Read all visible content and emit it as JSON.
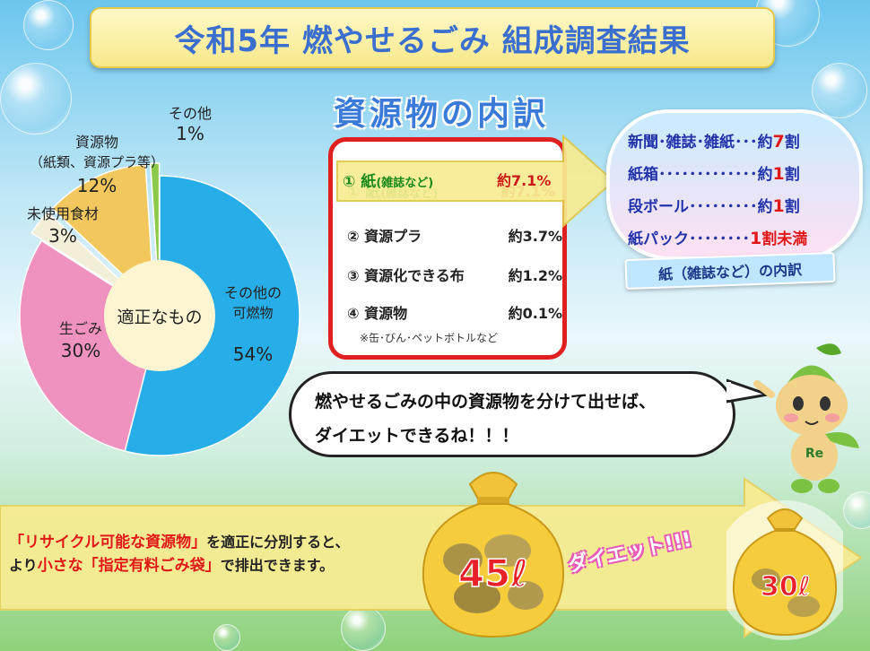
{
  "title": "令和5年 燃やせるごみ 組成調査結果",
  "chart_data": {
    "type": "pie",
    "title": "",
    "center_label": "適正なもの",
    "slices": [
      {
        "name": "その他の\n可燃物",
        "label_line1": "その他の",
        "label_line2": "可燃物",
        "value": 54,
        "value_text": "54%",
        "color": "#27aee8"
      },
      {
        "name": "生ごみ",
        "label_line1": "生ごみ",
        "value": 30,
        "value_text": "30%",
        "color": "#ef92c0"
      },
      {
        "name": "未使用食材",
        "label_line1": "未使用食材",
        "value": 3,
        "value_text": "3%",
        "color": "#f3eed8"
      },
      {
        "name": "資源物(紙類、資源プラ等)",
        "label_line1": "資源物",
        "label_line2": "（紙類、資源プラ等）",
        "value": 12,
        "value_text": "12%",
        "color": "#f2c85e"
      },
      {
        "name": "その他",
        "label_line1": "その他",
        "value": 1,
        "value_text": "1%",
        "color": "#8cc84a"
      }
    ]
  },
  "breakdown": {
    "heading": "資源物の内訳",
    "rows": [
      {
        "name": "① 紙",
        "name_small": "(雑誌など)",
        "value": "約7.1%"
      },
      {
        "name": "② 資源プラ",
        "value": "約3.7%"
      },
      {
        "name": "③ 資源化できる布",
        "value": "約1.2%"
      },
      {
        "name": "④ 資源物",
        "value": "約0.1%"
      }
    ],
    "note": "※缶･びん･ペットボトルなど"
  },
  "paper_breakdown": {
    "rows": [
      {
        "label": "新聞･雑誌･雑紙･･･約",
        "num": "7",
        "suffix": "割"
      },
      {
        "label": "紙箱･････････････約",
        "num": "1",
        "suffix": "割"
      },
      {
        "label": "段ボール･････････約",
        "num": "1",
        "suffix": "割"
      },
      {
        "label": "紙パック････････",
        "num": "1",
        "suffix": "割未満"
      }
    ],
    "caption": "紙（雑誌など）の内訳"
  },
  "speech": {
    "line1": "燃やせるごみの中の資源物を分けて出せば、",
    "line2": "ダイエットできるね！！！"
  },
  "mascot_badge": "Re",
  "bottom": {
    "line1_red": "「リサイクル可能な資源物」",
    "line1_rest": "を適正に分別すると、",
    "line2_a": "より",
    "line2_red": "小さな「指定有料ごみ袋」",
    "line2_rest": "で排出できます。",
    "bag_large": "45ℓ",
    "bag_small": "30ℓ",
    "diet": "ダイエット!!!"
  },
  "colors": {
    "title": "#3a6fd0",
    "accent_red": "#e01818",
    "arrow_yellow": "#f6e98a"
  }
}
